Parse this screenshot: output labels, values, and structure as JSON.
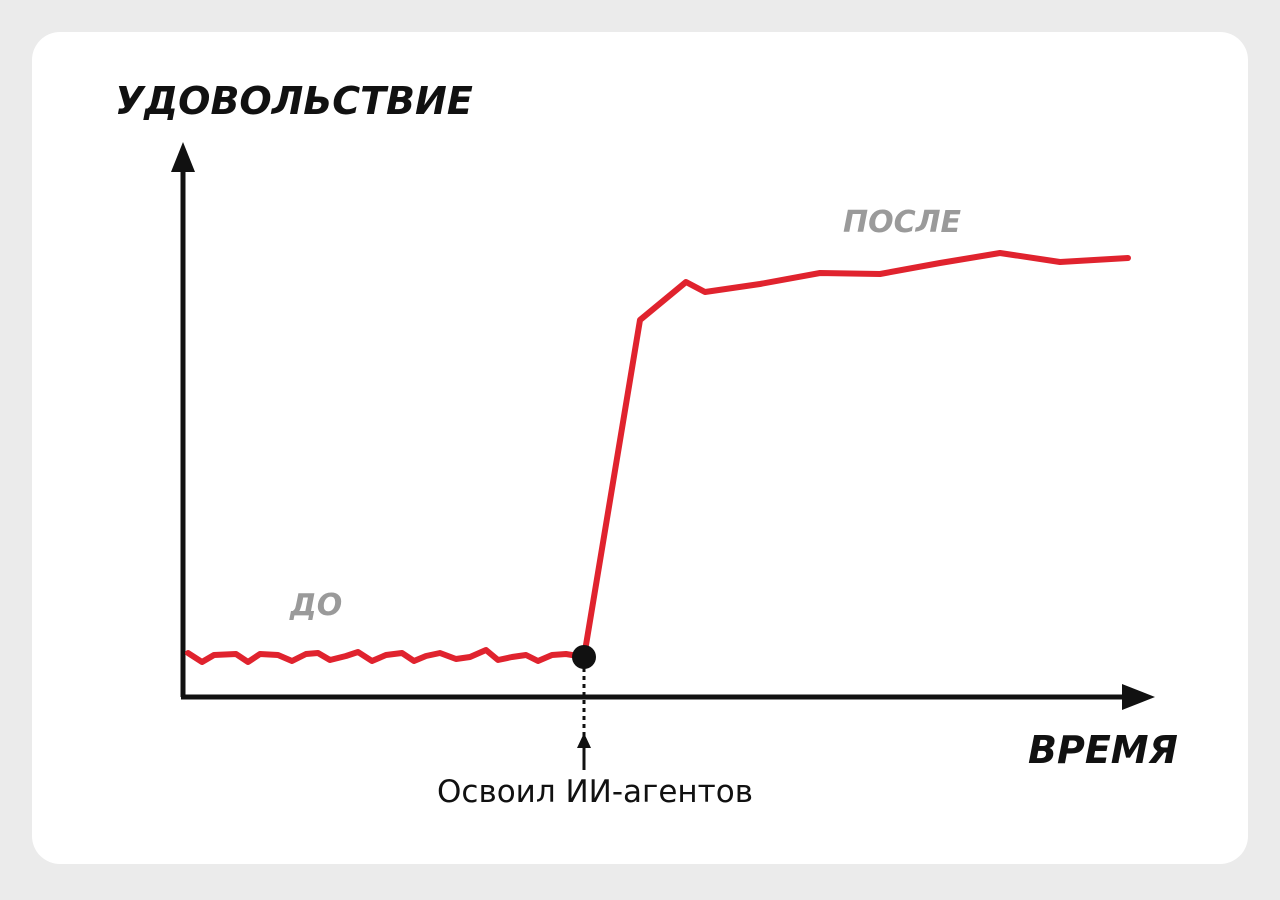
{
  "axes": {
    "y_label": "УДОВОЛЬСТВИЕ",
    "x_label": "ВРЕМЯ"
  },
  "phases": {
    "before": "ДО",
    "after": "ПОСЛЕ"
  },
  "annotation": "Освоил ИИ-агентов"
}
